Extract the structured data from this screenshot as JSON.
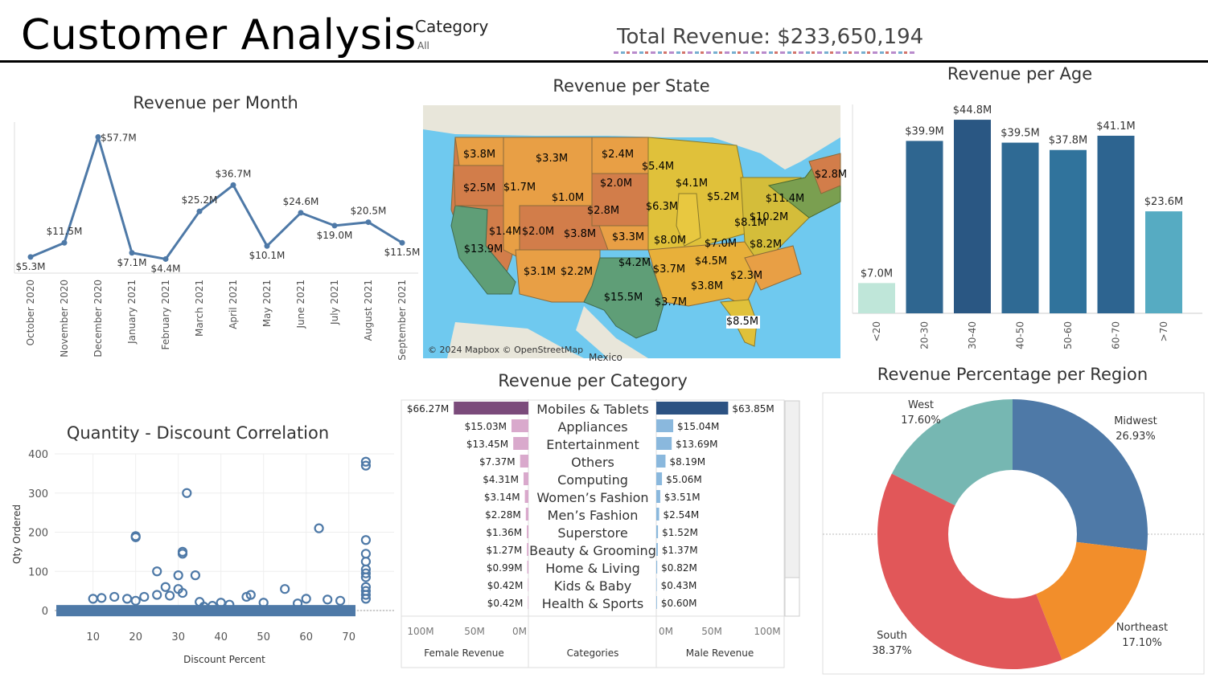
{
  "header": {
    "title": "Customer Analysis",
    "filter_label": "Category",
    "filter_value": "All",
    "total_revenue": "Total Revenue: $233,650,194"
  },
  "colors": {
    "line": "#4e79a7",
    "female": "#7b4b7b",
    "female_light": "#d9a9cc",
    "male": "#2c5282",
    "male_light": "#8ab8dd",
    "midwest": "#4e79a7",
    "northeast": "#f28e2b",
    "south": "#e15759",
    "west": "#76b7b2"
  },
  "map": {
    "title": "Revenue per State",
    "attribution": "© 2024 Mapbox © OpenStreetMap",
    "country_label": "Mexico",
    "state_labels": [
      "$3.8M",
      "$3.3M",
      "$2.4M",
      "$5.4M",
      "$2.8M",
      "$2.5M",
      "$1.7M",
      "$1.0M",
      "$2.0M",
      "$4.1M",
      "$5.2M",
      "$11.4M",
      "$2.8M",
      "$6.3M",
      "$8.1M",
      "$10.2M",
      "$1.4M",
      "$2.0M",
      "$3.8M",
      "$3.3M",
      "$8.0M",
      "$7.0M",
      "$8.2M",
      "$13.9M",
      "$4.2M",
      "$3.7M",
      "$4.5M",
      "$3.1M",
      "$2.2M",
      "$2.3M",
      "$3.8M",
      "$15.5M",
      "$3.7M",
      "$8.5M"
    ]
  },
  "chart_data": [
    {
      "type": "line",
      "title": "Revenue per Month",
      "x": [
        "October 2020",
        "November 2020",
        "December 2020",
        "January 2021",
        "February 2021",
        "March 2021",
        "April 2021",
        "May 2021",
        "June 2021",
        "July 2021",
        "August 2021",
        "September 2021"
      ],
      "values": [
        5.3,
        11.5,
        57.7,
        7.1,
        4.4,
        25.2,
        36.7,
        10.1,
        24.6,
        19.0,
        20.5,
        11.5
      ],
      "labels": [
        "$5.3M",
        "$11.5M",
        "$57.7M",
        "$7.1M",
        "$4.4M",
        "$25.2M",
        "$36.7M",
        "$10.1M",
        "$24.6M",
        "$19.0M",
        "$20.5M",
        "$11.5M"
      ],
      "ylim": [
        0,
        60
      ]
    },
    {
      "type": "bar",
      "title": "Revenue per Age",
      "categories": [
        "<20",
        "20-30",
        "30-40",
        "40-50",
        "50-60",
        "60-70",
        ">70"
      ],
      "values": [
        7.0,
        39.9,
        44.8,
        39.5,
        37.8,
        41.1,
        23.6
      ],
      "labels": [
        "$7.0M",
        "$39.9M",
        "$44.8M",
        "$39.5M",
        "$37.8M",
        "$41.1M",
        "$23.6M"
      ],
      "colors": [
        "#bfe6d9",
        "#2f6690",
        "#2a5783",
        "#2f6a94",
        "#30739c",
        "#2d6490",
        "#56abc2"
      ],
      "ylim": [
        0,
        45
      ]
    },
    {
      "type": "bar",
      "title": "Revenue per Category",
      "categories": [
        "Mobiles & Tablets",
        "Appliances",
        "Entertainment",
        "Others",
        "Computing",
        "Women’s Fashion",
        "Men’s Fashion",
        "Superstore",
        "Beauty & Grooming",
        "Home & Living",
        "Kids & Baby",
        "Health & Sports"
      ],
      "series": [
        {
          "name": "Female Revenue",
          "values": [
            66.27,
            15.03,
            13.45,
            7.37,
            4.31,
            3.14,
            2.28,
            1.36,
            1.27,
            0.99,
            0.42,
            0.42
          ],
          "labels": [
            "$66.27M",
            "$15.03M",
            "$13.45M",
            "$7.37M",
            "$4.31M",
            "$3.14M",
            "$2.28M",
            "$1.36M",
            "$1.27M",
            "$0.99M",
            "$0.42M",
            "$0.42M"
          ]
        },
        {
          "name": "Male Revenue",
          "values": [
            63.85,
            15.04,
            13.69,
            8.19,
            5.06,
            3.51,
            2.54,
            1.52,
            1.37,
            0.82,
            0.43,
            0.6
          ],
          "labels": [
            "$63.85M",
            "$15.04M",
            "$13.69M",
            "$8.19M",
            "$5.06M",
            "$3.51M",
            "$2.54M",
            "$1.52M",
            "$1.37M",
            "$0.82M",
            "$0.43M",
            "$0.60M"
          ]
        }
      ],
      "xlabel_middle": "Categories",
      "female_ticks": [
        "100M",
        "50M",
        "0M"
      ],
      "male_ticks": [
        "0M",
        "50M",
        "100M"
      ],
      "xlim": [
        0,
        100
      ]
    },
    {
      "type": "scatter",
      "title": "Quantity - Discount Correlation",
      "xlabel": "Discount Percent",
      "ylabel": "Qty Ordered",
      "xlim": [
        0,
        76
      ],
      "ylim": [
        0,
        400
      ],
      "xticks": [
        10,
        20,
        30,
        40,
        50,
        60,
        70
      ],
      "yticks": [
        0,
        100,
        200,
        300,
        400
      ],
      "points": [
        [
          20,
          190
        ],
        [
          20,
          187
        ],
        [
          31,
          150
        ],
        [
          31,
          145
        ],
        [
          32,
          300
        ],
        [
          25,
          100
        ],
        [
          30,
          90
        ],
        [
          34,
          90
        ],
        [
          27,
          60
        ],
        [
          30,
          55
        ],
        [
          31,
          45
        ],
        [
          25,
          40
        ],
        [
          28,
          38
        ],
        [
          22,
          35
        ],
        [
          18,
          30
        ],
        [
          15,
          35
        ],
        [
          10,
          30
        ],
        [
          12,
          32
        ],
        [
          20,
          25
        ],
        [
          63,
          210
        ],
        [
          74,
          380
        ],
        [
          74,
          370
        ],
        [
          74,
          180
        ],
        [
          74,
          145
        ],
        [
          74,
          125
        ],
        [
          74,
          105
        ],
        [
          74,
          95
        ],
        [
          74,
          85
        ],
        [
          74,
          60
        ],
        [
          74,
          50
        ],
        [
          74,
          40
        ],
        [
          74,
          30
        ],
        [
          55,
          55
        ],
        [
          47,
          40
        ],
        [
          46,
          35
        ],
        [
          60,
          30
        ],
        [
          65,
          28
        ],
        [
          68,
          25
        ],
        [
          40,
          20
        ],
        [
          35,
          22
        ],
        [
          50,
          20
        ],
        [
          58,
          18
        ],
        [
          42,
          15
        ],
        [
          38,
          12
        ],
        [
          36,
          10
        ]
      ]
    },
    {
      "type": "pie",
      "title": "Revenue Percentage per Region",
      "categories": [
        "Midwest",
        "Northeast",
        "South",
        "West"
      ],
      "values": [
        26.93,
        17.1,
        38.37,
        17.6
      ],
      "labels": [
        "26.93%",
        "17.10%",
        "38.37%",
        "17.60%"
      ]
    }
  ]
}
